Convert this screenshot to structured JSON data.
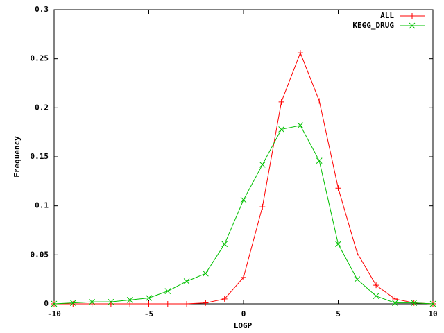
{
  "chart_data": {
    "type": "line",
    "xlabel": "LOGP",
    "ylabel": "Frequency",
    "x": [
      -10,
      -9,
      -8,
      -7,
      -6,
      -5,
      -4,
      -3,
      -2,
      -1,
      0,
      1,
      2,
      3,
      4,
      5,
      6,
      7,
      8,
      9,
      10
    ],
    "series": [
      {
        "name": "ALL",
        "color": "#ff0000",
        "marker": "+",
        "values": [
          0,
          0,
          0,
          0,
          0,
          0,
          0,
          0,
          0.001,
          0.005,
          0.027,
          0.099,
          0.206,
          0.256,
          0.207,
          0.118,
          0.052,
          0.019,
          0.005,
          0.001,
          0
        ]
      },
      {
        "name": "KEGG_DRUG",
        "color": "#00c000",
        "marker": "x",
        "values": [
          0,
          0.001,
          0.002,
          0.002,
          0.004,
          0.006,
          0.013,
          0.023,
          0.031,
          0.061,
          0.106,
          0.142,
          0.178,
          0.182,
          0.146,
          0.061,
          0.025,
          0.008,
          0.001,
          0.001,
          0
        ]
      }
    ],
    "xlim": [
      -10,
      10
    ],
    "xticks": [
      -10,
      -5,
      0,
      5,
      10
    ],
    "ylim": [
      0,
      0.3
    ],
    "yticks": [
      0,
      0.05,
      0.1,
      0.15,
      0.2,
      0.25,
      0.3
    ],
    "grid": false,
    "legend": "top-right"
  }
}
